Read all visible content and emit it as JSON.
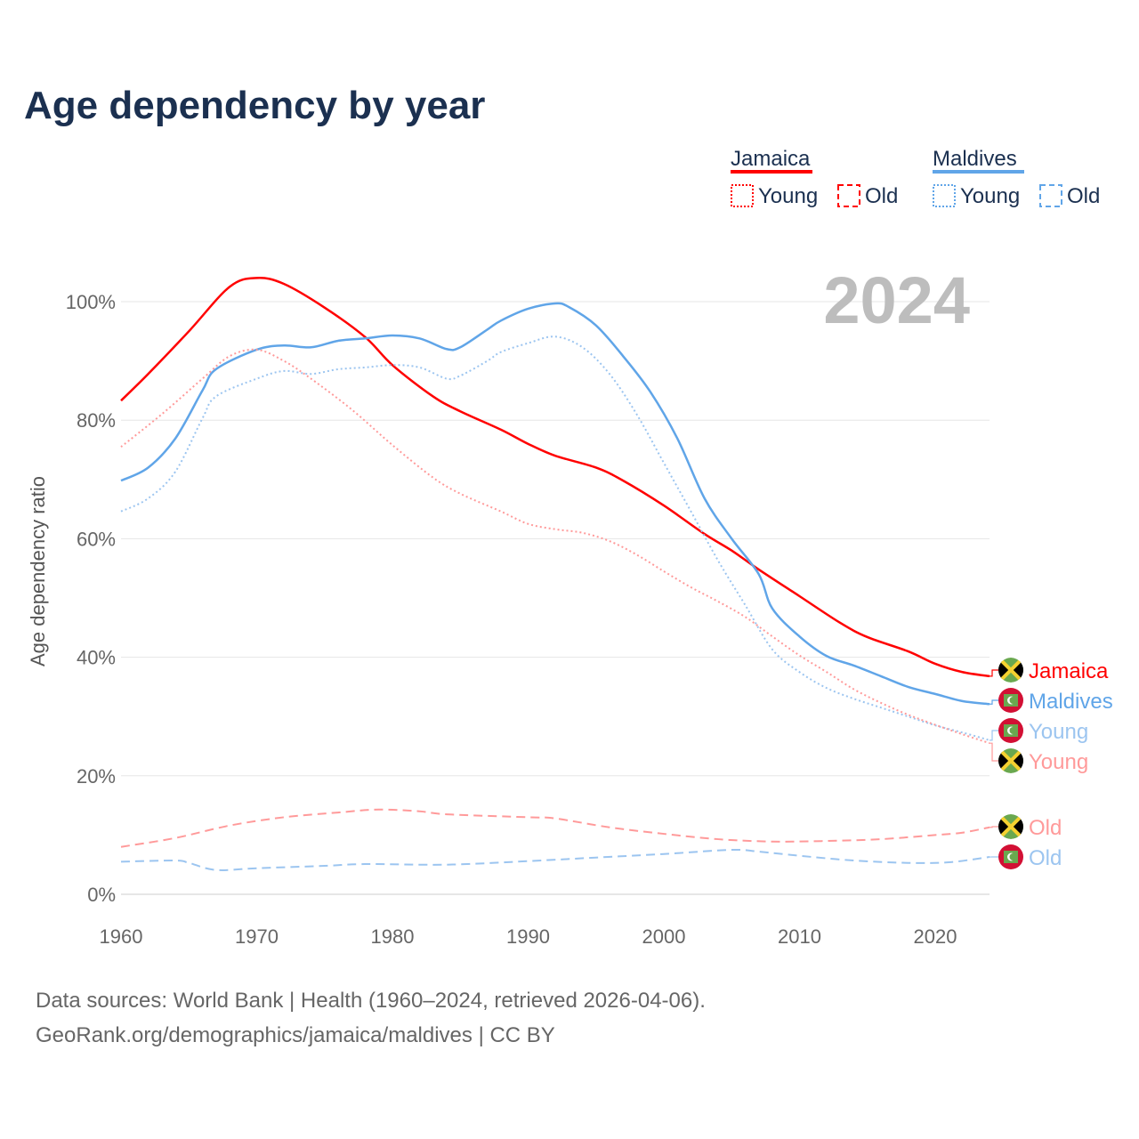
{
  "chart_data": {
    "type": "line",
    "title": "Age dependency by year",
    "ylabel": "Age dependency ratio",
    "xlabel": "",
    "xlim": [
      1960,
      2024
    ],
    "ylim": [
      0,
      100
    ],
    "x_ticks": [
      "1960",
      "1970",
      "1980",
      "1990",
      "2000",
      "2010",
      "2020"
    ],
    "y_ticks": [
      "0%",
      "20%",
      "40%",
      "60%",
      "80%",
      "100%"
    ],
    "year_label": "2024",
    "legend": {
      "placement": "top-right",
      "groups": [
        {
          "country": "Jamaica",
          "color": "#ff0000",
          "young": "Young",
          "old": "Old"
        },
        {
          "country": "Maldives",
          "color": "#60a5e8",
          "young": "Young",
          "old": "Old"
        }
      ]
    },
    "series": [
      {
        "name": "Jamaica",
        "label": "Jamaica",
        "flag": "jamaica",
        "style": "solid",
        "color": "#ff0000",
        "x": [
          1960,
          1962,
          1965,
          1968,
          1970,
          1972,
          1975,
          1978,
          1980,
          1983,
          1985,
          1988,
          1990,
          1992,
          1995,
          1997,
          2000,
          2003,
          2005,
          2007,
          2010,
          2013,
          2015,
          2018,
          2020,
          2022,
          2024
        ],
        "y": [
          83.3,
          87.8,
          95,
          102.5,
          104,
          103,
          99,
          94,
          89.3,
          84,
          81.5,
          78.4,
          76,
          74,
          72,
          69.8,
          65.6,
          60.8,
          58,
          54.8,
          50.3,
          45.8,
          43.4,
          41,
          38.9,
          37.5,
          36.8
        ]
      },
      {
        "name": "Maldives",
        "label": "Maldives",
        "flag": "maldives",
        "style": "solid",
        "color": "#60a5e8",
        "x": [
          1960,
          1962,
          1964,
          1966,
          1967,
          1970,
          1972,
          1974,
          1976,
          1978,
          1980,
          1982,
          1984,
          1985,
          1987,
          1988,
          1990,
          1992,
          1993,
          1995,
          1997,
          1999,
          2001,
          2003,
          2005,
          2007,
          2008,
          2010,
          2012,
          2014,
          2016,
          2018,
          2020,
          2022,
          2024
        ],
        "y": [
          69.8,
          72,
          76.9,
          85,
          88.6,
          91.9,
          92.6,
          92.3,
          93.4,
          93.8,
          94.3,
          93.8,
          92,
          92.3,
          95.3,
          96.8,
          98.8,
          99.7,
          99.1,
          96,
          90.8,
          84.8,
          76.9,
          66.8,
          60,
          54,
          48.2,
          43.5,
          40.2,
          38.6,
          36.8,
          35,
          33.8,
          32.6,
          32.1
        ]
      },
      {
        "name": "Maldives Young",
        "label": "Young",
        "flag": "maldives",
        "style": "dotted",
        "color": "#9cc5f0",
        "x": [
          1960,
          1962,
          1964,
          1966,
          1967,
          1970,
          1972,
          1974,
          1976,
          1978,
          1980,
          1982,
          1984,
          1985,
          1987,
          1988,
          1990,
          1992,
          1994,
          1996,
          1998,
          2000,
          2002,
          2004,
          2006,
          2008,
          2010,
          2012,
          2014,
          2016,
          2018,
          2020,
          2022,
          2024
        ],
        "y": [
          64.6,
          66.8,
          71.3,
          80.3,
          84,
          87,
          88.3,
          87.8,
          88.6,
          88.9,
          89.3,
          88.9,
          87,
          87.5,
          90,
          91.5,
          93,
          94.1,
          92.3,
          87.8,
          81,
          72.8,
          64.6,
          56.3,
          48.8,
          41.3,
          37.5,
          34.8,
          33,
          31.5,
          30,
          28.5,
          27.3,
          26
        ]
      },
      {
        "name": "Jamaica Young",
        "label": "Young",
        "flag": "jamaica",
        "style": "dotted",
        "color": "#ff9a9a",
        "x": [
          1960,
          1963,
          1966,
          1968,
          1970,
          1972,
          1974,
          1977,
          1980,
          1983,
          1985,
          1988,
          1990,
          1992,
          1994,
          1996,
          1998,
          2000,
          2002,
          2004,
          2006,
          2008,
          2010,
          2012,
          2014,
          2016,
          2018,
          2020,
          2022,
          2024
        ],
        "y": [
          75.5,
          81,
          87,
          90.8,
          91.9,
          90,
          87,
          81.8,
          75.8,
          70.3,
          67.6,
          64.6,
          62.5,
          61.6,
          61,
          59.6,
          57.3,
          54.5,
          51.8,
          49.4,
          46.8,
          43.5,
          40.3,
          37.5,
          34.6,
          32.3,
          30.3,
          28.6,
          27,
          25.5
        ]
      },
      {
        "name": "Jamaica Old",
        "label": "Old",
        "flag": "jamaica",
        "style": "dashed",
        "color": "#ff9a9a",
        "x": [
          1960,
          1964,
          1968,
          1972,
          1976,
          1979,
          1982,
          1984,
          1990,
          1992,
          1996,
          2000,
          2004,
          2008,
          2012,
          2016,
          2020,
          2022,
          2024
        ],
        "y": [
          8,
          9.5,
          11.6,
          13,
          13.8,
          14.3,
          14,
          13.5,
          13,
          12.8,
          11.3,
          10.2,
          9.3,
          8.9,
          9,
          9.3,
          10,
          10.4,
          11.3
        ]
      },
      {
        "name": "Maldives Old",
        "label": "Old",
        "flag": "maldives",
        "style": "dashed",
        "color": "#9cc5f0",
        "x": [
          1960,
          1964,
          1965,
          1967,
          1970,
          1975,
          1978,
          1984,
          1990,
          1995,
          2000,
          2005,
          2007,
          2010,
          2014,
          2018,
          2021,
          2024
        ],
        "y": [
          5.5,
          5.7,
          5.3,
          4.1,
          4.4,
          4.8,
          5.1,
          5,
          5.6,
          6.2,
          6.8,
          7.5,
          7.2,
          6.5,
          5.7,
          5.3,
          5.4,
          6.3
        ]
      }
    ]
  },
  "footer": {
    "source": "Data sources: World Bank | Health (1960–2024, retrieved 2026-04-06).",
    "link": "GeoRank.org/demographics/jamaica/maldives | CC BY"
  }
}
